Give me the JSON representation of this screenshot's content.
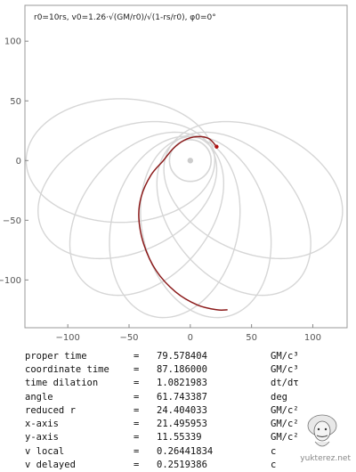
{
  "plot": {
    "header": "r0=10rs, v0=1.26·√(GM/r0)/√(1-rs/r0), φ0=0°",
    "x_ticks": [
      "−100",
      "−50",
      "0",
      "50",
      "100"
    ],
    "y_ticks": [
      "100",
      "50",
      "0",
      "−50",
      "−100"
    ]
  },
  "chart_data": {
    "type": "line",
    "title": "",
    "xlim": [
      -135,
      128
    ],
    "ylim": [
      -140,
      130
    ],
    "xticks": [
      -100,
      -50,
      0,
      50,
      100
    ],
    "yticks": [
      100,
      50,
      0,
      -50,
      -100
    ],
    "grid": false,
    "series": [
      {
        "role": "full orbit (precessing rosette)",
        "color": "#d6d6d6",
        "ellipse_petals": 7,
        "periapsis_r": 20,
        "apoapsis_r": 134,
        "inner_loop_r": 17
      },
      {
        "role": "traced path",
        "color": "#8b1a1a",
        "points": [
          [
            21.5,
            11.6
          ],
          [
            15,
            18.5
          ],
          [
            5,
            20
          ],
          [
            -5,
            17
          ],
          [
            -14,
            10
          ],
          [
            -22,
            0
          ],
          [
            -32,
            -12
          ],
          [
            -40,
            -30
          ],
          [
            -42,
            -48
          ],
          [
            -38,
            -70
          ],
          [
            -28,
            -92
          ],
          [
            -12,
            -110
          ],
          [
            6,
            -121
          ],
          [
            22,
            -125
          ],
          [
            30,
            -125
          ]
        ]
      }
    ],
    "center_mass": [
      0,
      0
    ],
    "current_point": [
      21.5,
      11.6
    ]
  },
  "readout": [
    {
      "label": "proper time",
      "eq": "=",
      "value": "79.578404",
      "unit": "GM/c³"
    },
    {
      "label": "coordinate time",
      "eq": "=",
      "value": "87.186000",
      "unit": "GM/c³"
    },
    {
      "label": "time dilation",
      "eq": "=",
      "value": "1.0821983",
      "unit": "dt/dτ"
    },
    {
      "label": "angle",
      "eq": "=",
      "value": "61.743387",
      "unit": "deg"
    },
    {
      "label": "reduced r",
      "eq": "=",
      "value": "24.404033",
      "unit": "GM/c²"
    },
    {
      "label": "x-axis",
      "eq": "=",
      "value": "21.495953",
      "unit": "GM/c²"
    },
    {
      "label": "y-axis",
      "eq": "=",
      "value": "11.55339",
      "unit": "GM/c²"
    },
    {
      "label": "v local",
      "eq": "=",
      "value": "0.26441834",
      "unit": "c"
    },
    {
      "label": "v delayed",
      "eq": "=",
      "value": "0.2519386",
      "unit": "c"
    }
  ],
  "credit": "yukterez.net",
  "avatar_icon": "einstein-caricature-icon"
}
